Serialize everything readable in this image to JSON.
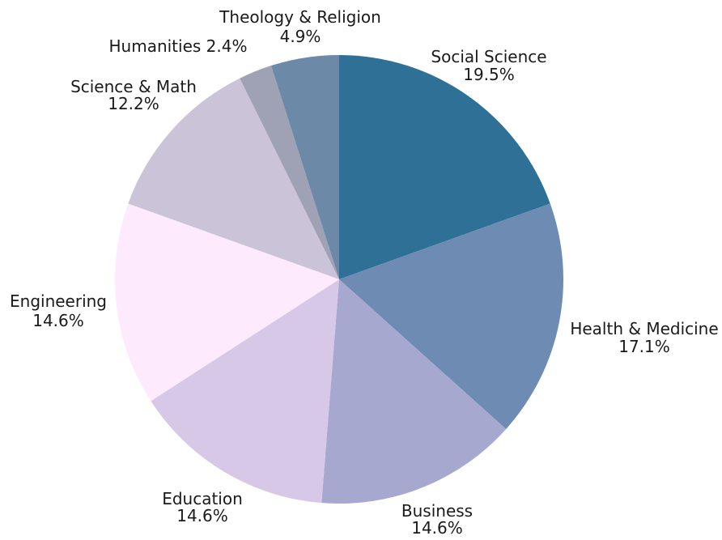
{
  "chart_data": {
    "type": "pie",
    "title": "",
    "slices": [
      {
        "label": "Social Science",
        "percent_label": "19.5%",
        "value": 19.5,
        "color": "#2e7096"
      },
      {
        "label": "Health & Medicine",
        "percent_label": "17.1%",
        "value": 17.1,
        "color": "#6e8bb3"
      },
      {
        "label": "Business",
        "percent_label": "14.6%",
        "value": 14.6,
        "color": "#a6a8cf"
      },
      {
        "label": "Education",
        "percent_label": "14.6%",
        "value": 14.6,
        "color": "#d6c8e6"
      },
      {
        "label": "Engineering",
        "percent_label": "14.6%",
        "value": 14.6,
        "color": "#feeafd"
      },
      {
        "label": "Science & Math",
        "percent_label": "12.2%",
        "value": 12.2,
        "color": "#cbc4d9"
      },
      {
        "label": "Humanities",
        "percent_label": "2.4%",
        "value": 2.4,
        "color": "#9ea2b4"
      },
      {
        "label": "Theology & Religion",
        "percent_label": "4.9%",
        "value": 4.9,
        "color": "#6d89a8"
      }
    ],
    "start_angle_deg": 0,
    "direction": "clockwise",
    "legend": "none"
  }
}
